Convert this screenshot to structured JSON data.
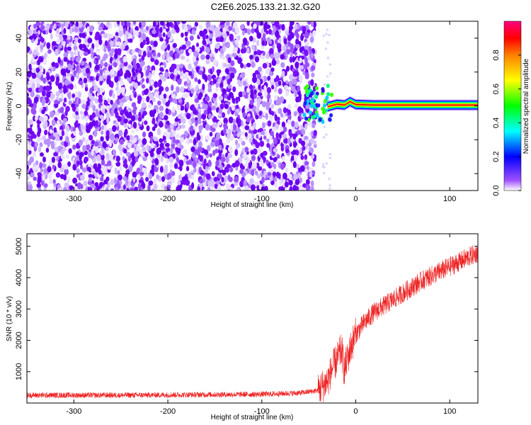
{
  "title": "C2E6.2025.133.21.32.G20",
  "chart_data": [
    {
      "type": "heatmap",
      "title": "C2E6.2025.133.21.32.G20",
      "xlabel": "Height of straight line (km)",
      "ylabel": "Frequency (Hz)",
      "xlim": [
        -350,
        130
      ],
      "ylim": [
        -50,
        50
      ],
      "x_ticks": [
        -300,
        -200,
        -100,
        0,
        100
      ],
      "y_ticks": [
        -40,
        -20,
        0,
        20,
        40
      ],
      "noise_region_x": [
        -350,
        -48
      ],
      "signal_onset_x": -50,
      "signal_frequency_hz": 0,
      "grid": false,
      "colorbar": {
        "label": "Normalized spectral amplitude",
        "range": [
          0,
          1
        ],
        "ticks": [
          0.0,
          0.2,
          0.4,
          0.6,
          0.8
        ],
        "colormap": [
          "#ffffff",
          "#7a00ff",
          "#0000ff",
          "#00ffff",
          "#00ff00",
          "#ffff00",
          "#ff7f00",
          "#ff0000",
          "#ff00ff"
        ]
      }
    },
    {
      "type": "line",
      "xlabel": "Height of straight line (km)",
      "ylabel": "SNR (10 * v/v)",
      "xlim": [
        -350,
        130
      ],
      "ylim": [
        0,
        5400
      ],
      "x_ticks": [
        -300,
        -200,
        -100,
        0,
        100
      ],
      "y_ticks": [
        1000,
        2000,
        3000,
        4000,
        5000
      ],
      "color": "#ee2222",
      "series": [
        {
          "x": [
            -350,
            -300,
            -250,
            -200,
            -150,
            -100,
            -60,
            -40,
            -30,
            -25,
            -20,
            -15,
            -12,
            -10,
            -5,
            0,
            10,
            20,
            30,
            50,
            70,
            90,
            110,
            130
          ],
          "y": [
            250,
            250,
            250,
            260,
            270,
            280,
            320,
            400,
            700,
            1100,
            1400,
            1700,
            1000,
            1300,
            1800,
            2200,
            2600,
            2900,
            3100,
            3500,
            3900,
            4200,
            4500,
            4800
          ]
        }
      ]
    }
  ]
}
